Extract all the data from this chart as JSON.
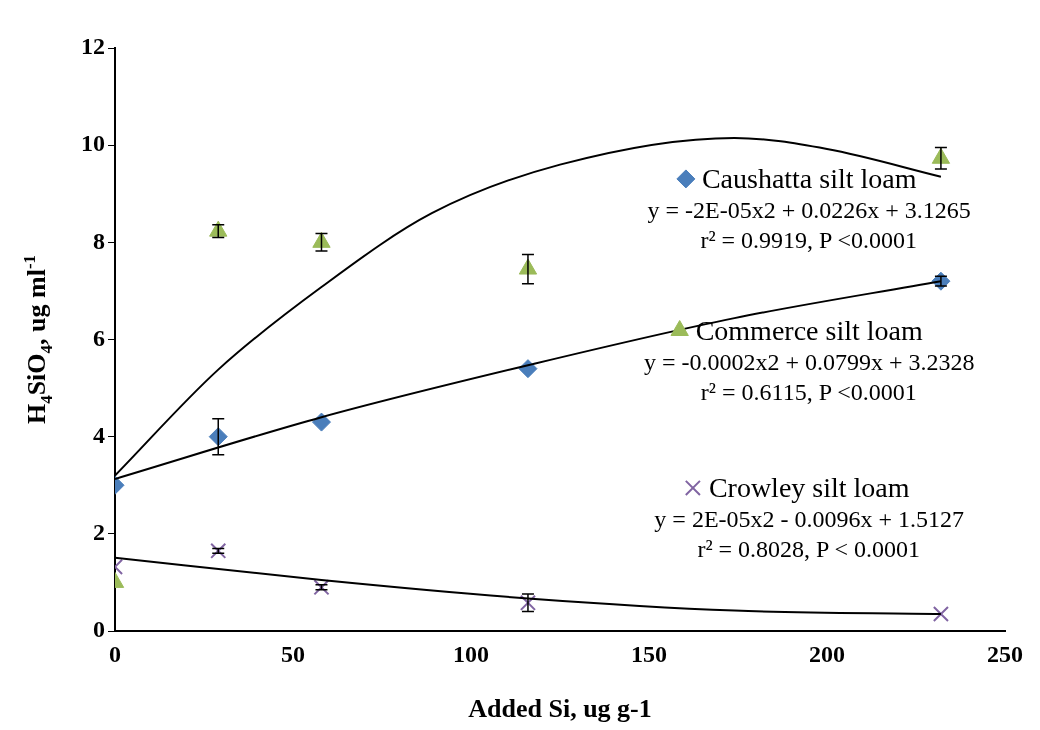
{
  "chart_data": {
    "type": "scatter",
    "xlabel": "Added Si, ug g-1",
    "ylabel": "H$_{4}$SiO$_{4}$, ug ml$^{-1}$",
    "xlim": [
      0,
      250
    ],
    "xticks": [
      0,
      50,
      100,
      150,
      200,
      250
    ],
    "ylim": [
      0,
      12
    ],
    "yticks": [
      0,
      2,
      4,
      6,
      8,
      10,
      12
    ],
    "grid": false,
    "legend": "right",
    "series": [
      {
        "name": "Caushatta silt loam",
        "color": "#4a7ebb",
        "marker": "diamond",
        "x": [
          0,
          29,
          58,
          116,
          232
        ],
        "values": [
          3.0,
          4.0,
          4.3,
          5.4,
          7.2
        ],
        "errors": [
          null,
          0.37,
          null,
          null,
          0.1
        ]
      },
      {
        "name": "Commerce silt loam",
        "color": "#9bbb59",
        "marker": "triangle",
        "x": [
          0,
          29,
          58,
          116,
          232
        ],
        "values": [
          1.0,
          8.23,
          8.0,
          7.45,
          9.73
        ],
        "errors": [
          null,
          0.13,
          0.18,
          0.3,
          0.22
        ]
      },
      {
        "name": "Crowley silt loam",
        "color": "#8064a2",
        "marker": "cross",
        "x": [
          0,
          29,
          58,
          116,
          232
        ],
        "values": [
          1.32,
          1.65,
          0.9,
          0.58,
          0.35
        ],
        "errors": [
          null,
          0.05,
          0.05,
          0.18,
          null
        ]
      },
      {
        "type": "line",
        "color": "#000000",
        "marker": "none",
        "x": [
          0,
          58,
          116,
          174,
          232
        ],
        "values": [
          3.13,
          4.4,
          5.47,
          6.44,
          7.2
        ]
      },
      {
        "type": "line",
        "color": "#000000",
        "marker": "none",
        "x": [
          0,
          29,
          58,
          89,
          125,
          174,
          200,
          232
        ],
        "values": [
          3.2,
          5.38,
          7.08,
          8.6,
          9.6,
          10.15,
          9.92,
          9.35
        ]
      },
      {
        "type": "line",
        "color": "#000000",
        "marker": "none",
        "x": [
          0,
          58,
          116,
          174,
          232
        ],
        "values": [
          1.51,
          1.05,
          0.67,
          0.42,
          0.35
        ]
      }
    ],
    "annotations": [
      "y = -2E-05x2 + 0.0226x + 3.1265",
      "r² = 0.9919, P <0.0001",
      "y = -0.0002x2 + 0.0799x + 3.2328",
      "r² = 0.6115, P <0.0001",
      "y = 2E-05x2 - 0.0096x + 1.5127",
      "r² = 0.8028, P < 0.0001"
    ]
  }
}
